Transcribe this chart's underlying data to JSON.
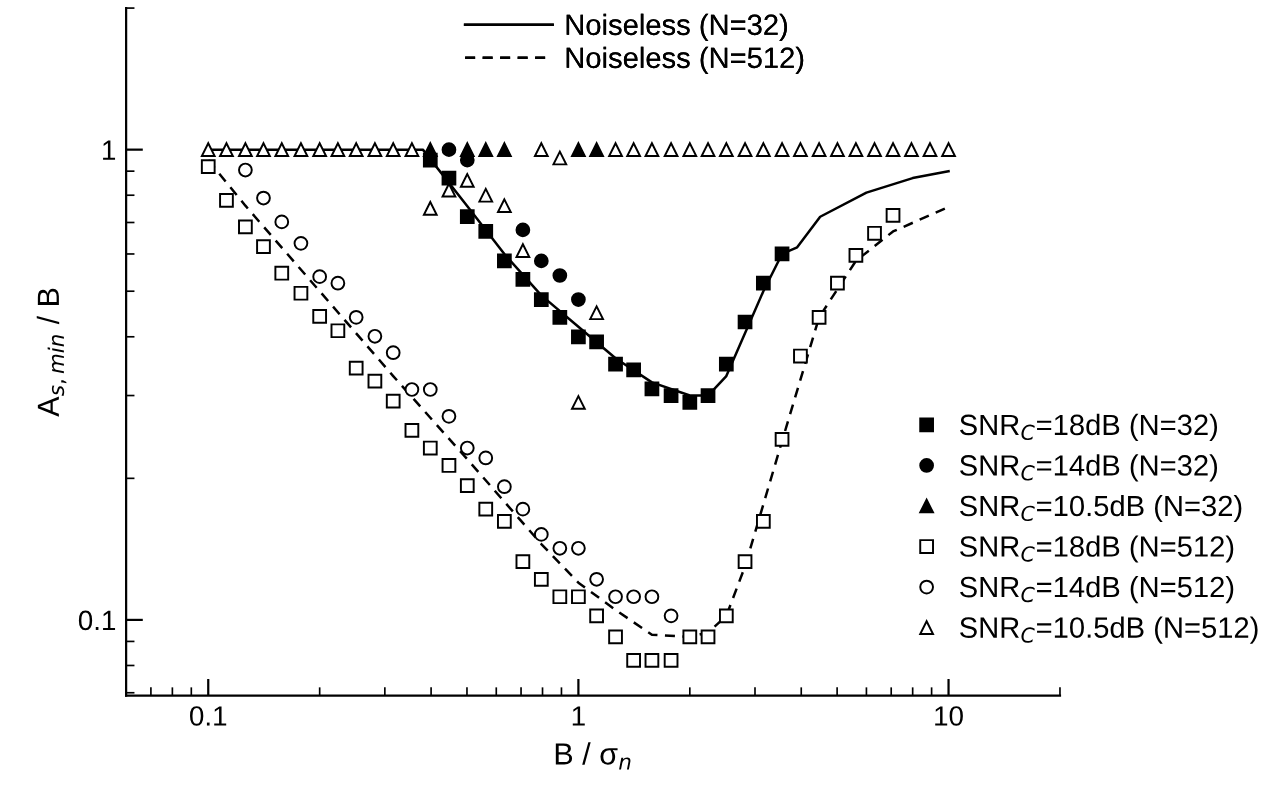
{
  "chart_data": {
    "type": "scatter",
    "xlabel": "B / σ$_{n}$",
    "ylabel": "A$_{s,min}$ / B",
    "log": "xy",
    "xlim": [
      0.06,
      20
    ],
    "ylim": [
      0.069,
      2.0
    ],
    "xticks": [
      0.1,
      1,
      10
    ],
    "yticks": [
      0.1,
      1
    ],
    "grid": false,
    "legend": "right",
    "series": [
      {
        "name": "Noiseless (N=32)",
        "type": "line",
        "line_style": "solid",
        "marker": "none",
        "color": "#000000",
        "x": [
          0.1,
          0.38,
          0.5,
          0.631,
          0.794,
          1.0,
          1.26,
          1.58,
          2.0,
          2.24,
          2.51,
          3.16,
          3.55,
          3.9,
          4.5,
          6.0,
          8.0,
          10.0
        ],
        "values": [
          1,
          1,
          0.76,
          0.6,
          0.49,
          0.42,
          0.36,
          0.32,
          0.3,
          0.3,
          0.33,
          0.5,
          0.6,
          0.62,
          0.72,
          0.81,
          0.87,
          0.9
        ]
      },
      {
        "name": "Noiseless (N=512)",
        "type": "line",
        "line_style": "dashed",
        "marker": "none",
        "color": "#000000",
        "x": [
          0.1,
          0.126,
          0.2,
          0.316,
          0.5,
          0.794,
          1.0,
          1.26,
          1.58,
          2.0,
          2.24,
          2.51,
          2.82,
          3.55,
          4.47,
          5.62,
          7.08,
          10.0
        ],
        "values": [
          0.95,
          0.76,
          0.5,
          0.33,
          0.22,
          0.145,
          0.12,
          0.105,
          0.093,
          0.092,
          0.094,
          0.102,
          0.13,
          0.24,
          0.44,
          0.58,
          0.67,
          0.755
        ]
      },
      {
        "name": "SNR$_{C}$=18dB (N=32)",
        "marker": "square",
        "color": "#000000",
        "x": [
          0.398,
          0.447,
          0.501,
          0.562,
          0.631,
          0.708,
          0.794,
          0.891,
          1.0,
          1.12,
          1.26,
          1.41,
          1.58,
          1.78,
          2.0,
          2.24,
          2.51,
          2.82,
          3.16,
          3.55
        ],
        "values": [
          0.95,
          0.87,
          0.72,
          0.67,
          0.58,
          0.53,
          0.48,
          0.44,
          0.4,
          0.39,
          0.35,
          0.34,
          0.31,
          0.3,
          0.29,
          0.3,
          0.35,
          0.43,
          0.52,
          0.6
        ]
      },
      {
        "name": "SNR$_{C}$=14dB (N=32)",
        "marker": "circle",
        "color": "#000000",
        "x": [
          0.447,
          0.501,
          0.708,
          0.794,
          0.891,
          1.0
        ],
        "values": [
          1,
          0.95,
          0.675,
          0.58,
          0.54,
          0.48
        ]
      },
      {
        "name": "SNR$_{C}$=10.5dB (N=32)",
        "marker": "triangle",
        "color": "#000000",
        "x": [
          0.398,
          0.501,
          0.562,
          0.631,
          1.0,
          1.12
        ],
        "values": [
          1,
          1,
          1,
          1,
          1,
          1
        ]
      },
      {
        "name": "SNR$_{C}$=18dB (N=512)",
        "marker": "square",
        "color": "#ffffff",
        "x": [
          0.1,
          0.112,
          0.126,
          0.141,
          0.158,
          0.178,
          0.2,
          0.224,
          0.251,
          0.282,
          0.316,
          0.355,
          0.398,
          0.447,
          0.501,
          0.562,
          0.631,
          0.708,
          0.794,
          0.891,
          1.0,
          1.12,
          1.26,
          1.41,
          1.58,
          1.78,
          2.0,
          2.24,
          2.51,
          2.82,
          3.16,
          3.55,
          3.98,
          4.47,
          5.01,
          5.62,
          6.31,
          7.08
        ],
        "values": [
          0.92,
          0.78,
          0.685,
          0.622,
          0.546,
          0.495,
          0.442,
          0.412,
          0.343,
          0.322,
          0.292,
          0.253,
          0.232,
          0.213,
          0.193,
          0.172,
          0.162,
          0.133,
          0.122,
          0.112,
          0.112,
          0.102,
          0.092,
          0.082,
          0.082,
          0.082,
          0.092,
          0.092,
          0.102,
          0.133,
          0.162,
          0.242,
          0.364,
          0.44,
          0.52,
          0.596,
          0.664,
          0.725
        ]
      },
      {
        "name": "SNR$_{C}$=14dB (N=512)",
        "marker": "circle",
        "color": "#ffffff",
        "x": [
          0.126,
          0.141,
          0.158,
          0.178,
          0.2,
          0.224,
          0.251,
          0.282,
          0.316,
          0.355,
          0.398,
          0.447,
          0.501,
          0.562,
          0.631,
          0.708,
          0.794,
          0.891,
          1.0,
          1.12,
          1.26,
          1.41,
          1.58,
          1.78
        ],
        "values": [
          0.905,
          0.789,
          0.702,
          0.632,
          0.537,
          0.52,
          0.44,
          0.401,
          0.37,
          0.309,
          0.309,
          0.271,
          0.232,
          0.221,
          0.192,
          0.172,
          0.152,
          0.142,
          0.142,
          0.122,
          0.112,
          0.112,
          0.112,
          0.102
        ]
      },
      {
        "name": "SNR$_{C}$=10.5dB (N=512)",
        "marker": "triangle",
        "color": "#ffffff",
        "x": [
          0.1,
          0.112,
          0.126,
          0.141,
          0.158,
          0.178,
          0.2,
          0.224,
          0.251,
          0.282,
          0.316,
          0.355,
          0.398,
          0.447,
          0.501,
          0.562,
          0.631,
          0.708,
          0.794,
          0.891,
          1.0,
          1.12,
          1.26,
          1.41,
          1.58,
          1.78,
          2.0,
          2.24,
          2.51,
          2.82,
          3.16,
          3.55,
          3.98,
          4.47,
          5.01,
          5.62,
          6.31,
          7.08,
          7.94,
          8.91,
          10.0
        ],
        "values": [
          1,
          1,
          1,
          1,
          1,
          1,
          1,
          1,
          1,
          1,
          1,
          1,
          0.75,
          0.82,
          0.86,
          0.8,
          0.76,
          0.61,
          1,
          0.96,
          0.29,
          0.45,
          1,
          1,
          1,
          1,
          1,
          1,
          1,
          1,
          1,
          1,
          1,
          1,
          1,
          1,
          1,
          1,
          1,
          1,
          1
        ]
      }
    ]
  }
}
